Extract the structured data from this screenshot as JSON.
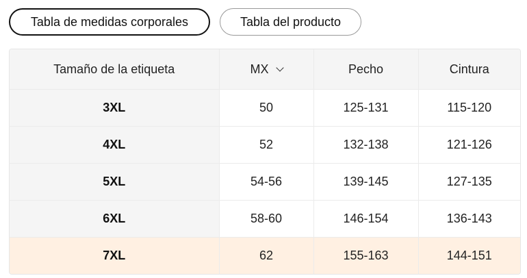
{
  "tabs": [
    {
      "label": "Tabla de medidas corporales",
      "active": true
    },
    {
      "label": "Tabla del producto",
      "active": false
    }
  ],
  "table": {
    "headers": [
      "Tamaño de la etiqueta",
      "MX",
      "Pecho",
      "Cintura"
    ],
    "unit_dropdown_icon": "chevron-down-icon",
    "highlight_color": "#fff0e2",
    "rows": [
      [
        "3XL",
        "50",
        "125-131",
        "115-120"
      ],
      [
        "4XL",
        "52",
        "132-138",
        "121-126"
      ],
      [
        "5XL",
        "54-56",
        "139-145",
        "127-135"
      ],
      [
        "6XL",
        "58-60",
        "146-154",
        "136-143"
      ],
      [
        "7XL",
        "62",
        "155-163",
        "144-151"
      ]
    ],
    "highlighted_row": 4
  }
}
